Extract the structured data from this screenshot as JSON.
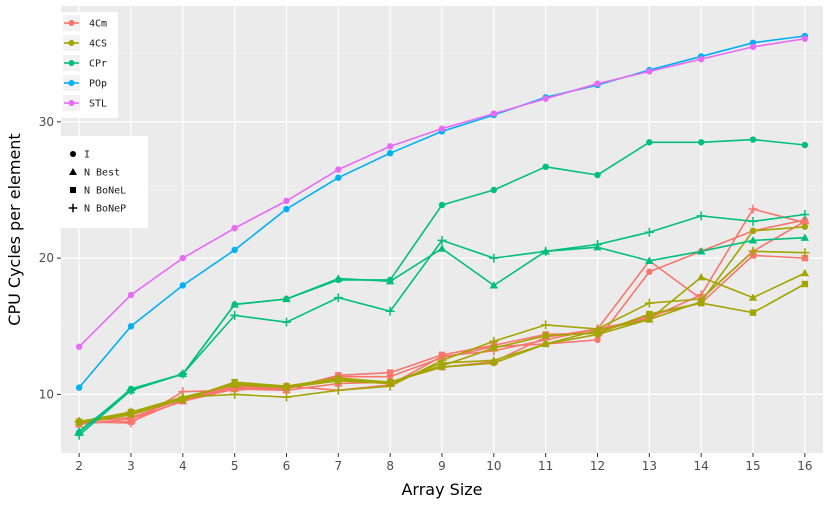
{
  "chart_data": {
    "type": "line",
    "xlabel": "Array Size",
    "ylabel": "CPU Cycles per element",
    "x": [
      2,
      3,
      4,
      5,
      6,
      7,
      8,
      9,
      10,
      11,
      12,
      13,
      14,
      15,
      16
    ],
    "xlim": [
      1.65,
      16.35
    ],
    "ylim": [
      5.7,
      38.5
    ],
    "yticks": [
      10,
      20,
      30
    ],
    "grid": true,
    "background": "#ebebeb",
    "legend_color": {
      "title": "",
      "entries": [
        {
          "label": "4Cm",
          "color": "#f8766d"
        },
        {
          "label": "4CS",
          "color": "#a3a500"
        },
        {
          "label": "CPr",
          "color": "#00bf7d"
        },
        {
          "label": "POp",
          "color": "#00b0f6"
        },
        {
          "label": "STL",
          "color": "#e76bf3"
        }
      ]
    },
    "legend_shape": {
      "title": "",
      "entries": [
        {
          "label": "I",
          "shape": "circle"
        },
        {
          "label": "N Best",
          "shape": "triangle"
        },
        {
          "label": "N BoNeL",
          "shape": "square"
        },
        {
          "label": "N BoNeP",
          "shape": "plus"
        }
      ]
    },
    "series": [
      {
        "algo": "4Cm",
        "variant": "I",
        "color": "#f8766d",
        "shape": "circle",
        "values": [
          8.0,
          8.3,
          9.7,
          10.6,
          10.5,
          11.3,
          11.3,
          12.7,
          13.5,
          13.7,
          14.0,
          19.0,
          20.5,
          22.0,
          22.8
        ]
      },
      {
        "algo": "4Cm",
        "variant": "N Best",
        "color": "#f8766d",
        "shape": "triangle",
        "values": [
          7.8,
          8.2,
          9.5,
          10.4,
          10.3,
          10.8,
          10.9,
          12.0,
          12.4,
          14.2,
          14.8,
          19.8,
          17.0,
          20.5,
          22.7
        ]
      },
      {
        "algo": "4Cm",
        "variant": "N BoNeL",
        "color": "#f8766d",
        "shape": "square",
        "values": [
          7.9,
          8.0,
          9.6,
          10.5,
          10.4,
          11.4,
          11.6,
          12.9,
          13.6,
          14.4,
          14.5,
          15.8,
          16.7,
          20.2,
          20.0
        ]
      },
      {
        "algo": "4Cm",
        "variant": "N BoNeP",
        "color": "#f8766d",
        "shape": "plus",
        "values": [
          8.0,
          7.9,
          10.2,
          10.3,
          10.6,
          10.3,
          10.7,
          12.8,
          13.2,
          14.0,
          14.8,
          15.6,
          17.3,
          23.6,
          22.6
        ]
      },
      {
        "algo": "4CS",
        "variant": "I",
        "color": "#a3a500",
        "shape": "circle",
        "values": [
          7.9,
          8.5,
          9.7,
          10.8,
          10.6,
          11.2,
          10.9,
          12.0,
          12.3,
          13.7,
          14.4,
          15.5,
          16.8,
          22.0,
          22.3
        ]
      },
      {
        "algo": "4CS",
        "variant": "N Best",
        "color": "#a3a500",
        "shape": "triangle",
        "values": [
          8.0,
          8.6,
          9.8,
          10.7,
          10.5,
          11.0,
          10.8,
          12.3,
          12.5,
          13.7,
          14.7,
          15.5,
          18.6,
          17.1,
          18.9
        ]
      },
      {
        "algo": "4CS",
        "variant": "N BoNeL",
        "color": "#a3a500",
        "shape": "square",
        "values": [
          8.0,
          8.7,
          9.6,
          10.9,
          10.6,
          11.1,
          10.9,
          12.1,
          13.4,
          14.3,
          14.5,
          15.9,
          16.7,
          16.0,
          18.1
        ]
      },
      {
        "algo": "4CS",
        "variant": "N BoNeP",
        "color": "#a3a500",
        "shape": "plus",
        "values": [
          8.0,
          8.7,
          9.8,
          10.0,
          9.8,
          10.3,
          10.6,
          12.5,
          13.9,
          15.1,
          14.8,
          16.7,
          17.0,
          20.5,
          20.4
        ]
      },
      {
        "algo": "CPr",
        "variant": "I",
        "color": "#00bf7d",
        "shape": "circle",
        "values": [
          7.2,
          10.4,
          11.5,
          16.6,
          17.0,
          18.4,
          18.4,
          23.9,
          25.0,
          26.7,
          26.1,
          28.5,
          28.5,
          28.7,
          28.3
        ]
      },
      {
        "algo": "CPr",
        "variant": "N Best",
        "color": "#00bf7d",
        "shape": "triangle",
        "values": [
          7.3,
          10.3,
          11.5,
          16.6,
          17.0,
          18.5,
          18.3,
          20.7,
          18.0,
          20.5,
          20.8,
          19.8,
          20.5,
          21.3,
          21.5
        ]
      },
      {
        "algo": "CPr",
        "variant": "N BoNeP",
        "color": "#00bf7d",
        "shape": "plus",
        "values": [
          7.0,
          10.3,
          11.5,
          15.8,
          15.3,
          17.1,
          16.1,
          21.3,
          20.0,
          20.5,
          21.0,
          21.9,
          23.1,
          22.7,
          23.2
        ]
      },
      {
        "algo": "POp",
        "variant": "I",
        "color": "#00b0f6",
        "shape": "circle",
        "values": [
          10.5,
          15.0,
          18.0,
          20.6,
          23.6,
          25.9,
          27.7,
          29.3,
          30.5,
          31.8,
          32.7,
          33.8,
          34.8,
          35.8,
          36.3
        ]
      },
      {
        "algo": "STL",
        "variant": "I",
        "color": "#e76bf3",
        "shape": "circle",
        "values": [
          13.5,
          17.3,
          20.0,
          22.2,
          24.2,
          26.5,
          28.2,
          29.5,
          30.6,
          31.7,
          32.8,
          33.7,
          34.6,
          35.5,
          36.1
        ]
      }
    ]
  }
}
